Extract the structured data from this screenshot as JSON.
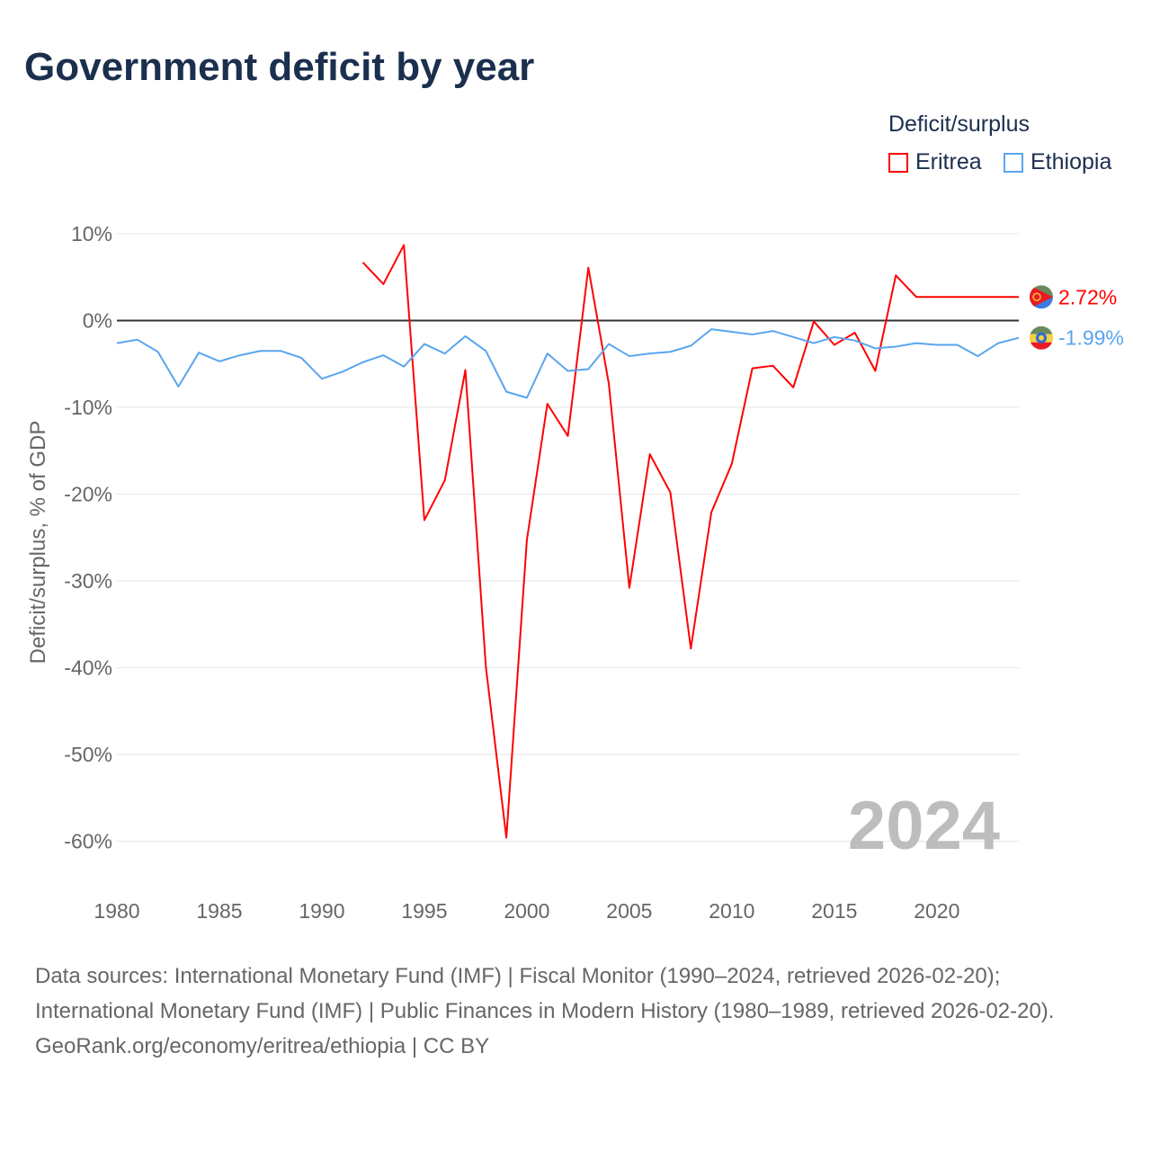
{
  "title": "Government deficit by year",
  "legend": {
    "title": "Deficit/surplus",
    "items": [
      {
        "name": "Eritrea",
        "color": "#ff0000"
      },
      {
        "name": "Ethiopia",
        "color": "#5aa5ee"
      }
    ]
  },
  "year_label": "2024",
  "source": {
    "line1": "Data sources: International Monetary Fund (IMF) | Fiscal Monitor (1990–2024, retrieved 2026-02-20); International Monetary Fund (IMF) | Public Finances in Modern History (1980–1989, retrieved 2026-02-20).",
    "line2": "GeoRank.org/economy/eritrea/ethiopia | CC BY"
  },
  "chart_data": {
    "type": "line",
    "title": "Government deficit by year",
    "xlabel": "",
    "ylabel": "Deficit/surplus, % of GDP",
    "xlim": [
      1980,
      2024
    ],
    "ylim": [
      -65,
      10
    ],
    "yticks": [
      10,
      0,
      -10,
      -20,
      -30,
      -40,
      -50,
      -60
    ],
    "ytick_labels": [
      "10%",
      "0%",
      "-10%",
      "-20%",
      "-30%",
      "-40%",
      "-50%",
      "-60%"
    ],
    "xticks": [
      1980,
      1985,
      1990,
      1995,
      2000,
      2005,
      2010,
      2015,
      2020
    ],
    "xtick_labels": [
      "1980",
      "1985",
      "1990",
      "1995",
      "2000",
      "2005",
      "2010",
      "2015",
      "2020"
    ],
    "legend_position": "top-right",
    "series": [
      {
        "name": "Eritrea",
        "color": "#ff0000",
        "end_label": "2.72%",
        "x": [
          1992,
          1993,
          1994,
          1995,
          1996,
          1997,
          1998,
          1999,
          2000,
          2001,
          2002,
          2003,
          2004,
          2005,
          2006,
          2007,
          2008,
          2009,
          2010,
          2011,
          2012,
          2013,
          2014,
          2015,
          2016,
          2017,
          2018,
          2019,
          2020,
          2021,
          2022,
          2023,
          2024
        ],
        "values": [
          6.7,
          4.2,
          8.7,
          -23.0,
          -18.4,
          -5.7,
          -39.9,
          -59.6,
          -25.3,
          -9.6,
          -13.3,
          6.1,
          -7.3,
          -30.8,
          -15.4,
          -19.8,
          -37.8,
          -22.1,
          -16.5,
          -5.5,
          -5.2,
          -7.7,
          -0.1,
          -2.8,
          -1.4,
          -5.8,
          5.2,
          2.72,
          2.72,
          2.72,
          2.72,
          2.72,
          2.72
        ]
      },
      {
        "name": "Ethiopia",
        "color": "#5aa5ee",
        "end_label": "-1.99%",
        "x": [
          1980,
          1981,
          1982,
          1983,
          1984,
          1985,
          1986,
          1987,
          1988,
          1989,
          1990,
          1991,
          1992,
          1993,
          1994,
          1995,
          1996,
          1997,
          1998,
          1999,
          2000,
          2001,
          2002,
          2003,
          2004,
          2005,
          2006,
          2007,
          2008,
          2009,
          2010,
          2011,
          2012,
          2013,
          2014,
          2015,
          2016,
          2017,
          2018,
          2019,
          2020,
          2021,
          2022,
          2023,
          2024
        ],
        "values": [
          -2.6,
          -2.2,
          -3.6,
          -7.6,
          -3.7,
          -4.7,
          -4.0,
          -3.5,
          -3.5,
          -4.3,
          -6.7,
          -5.9,
          -4.8,
          -4.0,
          -5.3,
          -2.7,
          -3.8,
          -1.8,
          -3.5,
          -8.2,
          -8.9,
          -3.8,
          -5.8,
          -5.6,
          -2.7,
          -4.1,
          -3.8,
          -3.6,
          -2.9,
          -1.0,
          -1.3,
          -1.6,
          -1.2,
          -1.9,
          -2.6,
          -1.9,
          -2.3,
          -3.2,
          -3.0,
          -2.6,
          -2.8,
          -2.8,
          -4.1,
          -2.6,
          -1.99
        ]
      }
    ]
  }
}
